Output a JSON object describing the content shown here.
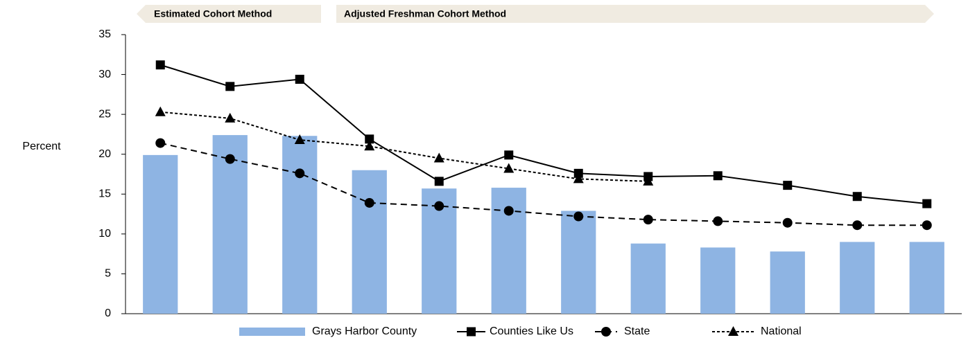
{
  "chart_data": {
    "type": "bar",
    "annotations": [
      "Estimated Cohort Method",
      "Adjusted Freshman Cohort Method"
    ],
    "ylabel": "Percent",
    "categories": [
      null,
      null,
      null,
      null,
      null,
      null,
      null,
      null,
      null,
      null,
      null,
      null
    ],
    "ylim": [
      0,
      35
    ],
    "yticks": [
      0,
      5,
      10,
      15,
      20,
      25,
      30,
      35
    ],
    "series": [
      {
        "name": "Grays Harbor County",
        "type": "bar",
        "color": "#8eb4e3",
        "values": [
          19.9,
          22.4,
          22.3,
          18.0,
          15.7,
          15.8,
          12.9,
          8.8,
          8.3,
          7.8,
          9.0,
          9.0
        ]
      },
      {
        "name": "Counties Like Us",
        "type": "line",
        "color": "#000000",
        "marker": "square",
        "dash": "solid",
        "values": [
          31.2,
          28.5,
          29.4,
          21.9,
          16.6,
          19.9,
          17.6,
          17.2,
          17.3,
          16.1,
          14.7,
          13.8
        ]
      },
      {
        "name": "State",
        "type": "line",
        "color": "#000000",
        "marker": "circle",
        "dash": "dashed",
        "values": [
          21.4,
          19.4,
          17.6,
          13.9,
          13.5,
          12.9,
          12.2,
          11.8,
          11.6,
          11.4,
          11.1,
          11.1
        ]
      },
      {
        "name": "National",
        "type": "line",
        "color": "#000000",
        "marker": "triangle",
        "dash": "dotted",
        "values": [
          25.3,
          24.5,
          21.8,
          21.0,
          19.5,
          18.2,
          16.9,
          16.6,
          null,
          null,
          null,
          null
        ]
      }
    ]
  }
}
